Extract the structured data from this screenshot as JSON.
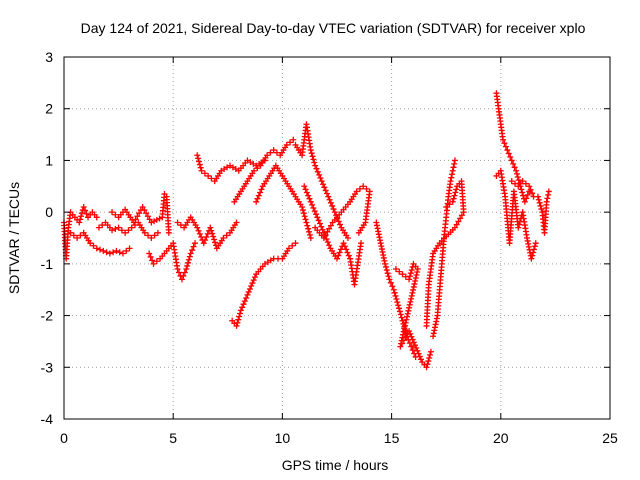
{
  "chart_data": {
    "type": "scatter",
    "title": "Day 124 of 2021, Sidereal Day-to-day VTEC variation (SDTVAR) for receiver xplo",
    "xlabel": "GPS time / hours",
    "ylabel": "SDTVAR / TECUs",
    "xlim": [
      0,
      25
    ],
    "ylim": [
      -4,
      3
    ],
    "xticks": [
      0,
      5,
      10,
      15,
      20,
      25
    ],
    "yticks": [
      -4,
      -3,
      -2,
      -1,
      0,
      1,
      2,
      3
    ],
    "grid": true,
    "marker": "+",
    "series": [
      {
        "name": "SDTVAR",
        "color": "#ff0000",
        "points": [
          [
            0.0,
            -0.2
          ],
          [
            0.1,
            -0.9
          ],
          [
            0.2,
            -0.3
          ],
          [
            0.3,
            0.0
          ],
          [
            0.5,
            -0.1
          ],
          [
            0.7,
            -0.2
          ],
          [
            0.9,
            0.1
          ],
          [
            1.1,
            -0.1
          ],
          [
            1.3,
            0.0
          ],
          [
            1.5,
            -0.1
          ],
          [
            0.3,
            -0.4
          ],
          [
            0.6,
            -0.5
          ],
          [
            0.9,
            -0.4
          ],
          [
            1.2,
            -0.6
          ],
          [
            1.5,
            -0.7
          ],
          [
            1.8,
            -0.75
          ],
          [
            2.1,
            -0.8
          ],
          [
            2.4,
            -0.75
          ],
          [
            2.7,
            -0.8
          ],
          [
            3.0,
            -0.7
          ],
          [
            1.6,
            -0.3
          ],
          [
            1.9,
            -0.2
          ],
          [
            2.2,
            -0.35
          ],
          [
            2.5,
            -0.3
          ],
          [
            2.8,
            -0.4
          ],
          [
            3.1,
            -0.3
          ],
          [
            3.4,
            -0.2
          ],
          [
            3.7,
            -0.4
          ],
          [
            4.0,
            -0.5
          ],
          [
            4.3,
            -0.4
          ],
          [
            2.2,
            0.0
          ],
          [
            2.5,
            -0.1
          ],
          [
            2.8,
            0.05
          ],
          [
            3.2,
            -0.2
          ],
          [
            3.6,
            0.1
          ],
          [
            4.0,
            -0.2
          ],
          [
            4.5,
            -0.1
          ],
          [
            4.6,
            0.35
          ],
          [
            4.7,
            0.3
          ],
          [
            4.8,
            -0.4
          ],
          [
            3.9,
            -0.8
          ],
          [
            4.1,
            -1.0
          ],
          [
            4.4,
            -0.9
          ],
          [
            4.8,
            -0.7
          ],
          [
            5.0,
            -0.6
          ],
          [
            5.2,
            -1.1
          ],
          [
            5.4,
            -1.3
          ],
          [
            5.6,
            -1.1
          ],
          [
            5.8,
            -0.8
          ],
          [
            6.0,
            -0.6
          ],
          [
            5.2,
            -0.2
          ],
          [
            5.5,
            -0.3
          ],
          [
            5.8,
            -0.1
          ],
          [
            6.1,
            -0.3
          ],
          [
            6.4,
            -0.6
          ],
          [
            6.7,
            -0.3
          ],
          [
            7.0,
            -0.7
          ],
          [
            7.3,
            -0.5
          ],
          [
            7.6,
            -0.4
          ],
          [
            7.9,
            -0.2
          ],
          [
            6.1,
            1.1
          ],
          [
            6.3,
            0.8
          ],
          [
            6.6,
            0.7
          ],
          [
            6.9,
            0.6
          ],
          [
            7.2,
            0.8
          ],
          [
            7.6,
            0.9
          ],
          [
            8.0,
            0.8
          ],
          [
            8.4,
            1.0
          ],
          [
            8.8,
            0.9
          ],
          [
            9.2,
            1.0
          ],
          [
            7.7,
            -2.1
          ],
          [
            7.9,
            -2.2
          ],
          [
            8.1,
            -1.9
          ],
          [
            8.4,
            -1.6
          ],
          [
            8.8,
            -1.2
          ],
          [
            9.2,
            -1.0
          ],
          [
            9.6,
            -0.9
          ],
          [
            10.0,
            -0.9
          ],
          [
            10.3,
            -0.7
          ],
          [
            10.6,
            -0.6
          ],
          [
            7.8,
            0.2
          ],
          [
            8.1,
            0.4
          ],
          [
            8.4,
            0.6
          ],
          [
            8.7,
            0.8
          ],
          [
            9.0,
            0.9
          ],
          [
            9.3,
            1.1
          ],
          [
            9.6,
            1.2
          ],
          [
            9.9,
            1.1
          ],
          [
            10.2,
            1.3
          ],
          [
            10.5,
            1.4
          ],
          [
            8.8,
            0.2
          ],
          [
            9.1,
            0.5
          ],
          [
            9.4,
            0.7
          ],
          [
            9.7,
            0.9
          ],
          [
            10.0,
            0.7
          ],
          [
            10.3,
            0.5
          ],
          [
            10.6,
            0.3
          ],
          [
            10.9,
            0.1
          ],
          [
            11.1,
            -0.2
          ],
          [
            11.3,
            -0.5
          ],
          [
            10.6,
            1.3
          ],
          [
            10.9,
            1.1
          ],
          [
            11.1,
            1.7
          ],
          [
            11.3,
            1.2
          ],
          [
            11.5,
            0.9
          ],
          [
            11.8,
            0.6
          ],
          [
            12.1,
            0.3
          ],
          [
            12.4,
            0.0
          ],
          [
            12.7,
            -0.3
          ],
          [
            13.0,
            -0.5
          ],
          [
            11.0,
            0.5
          ],
          [
            11.3,
            0.2
          ],
          [
            11.6,
            -0.1
          ],
          [
            11.9,
            -0.4
          ],
          [
            12.2,
            -0.7
          ],
          [
            12.5,
            -0.9
          ],
          [
            12.8,
            -0.6
          ],
          [
            13.1,
            -0.9
          ],
          [
            13.3,
            -1.4
          ],
          [
            13.6,
            -0.6
          ],
          [
            11.5,
            -0.3
          ],
          [
            11.9,
            -0.5
          ],
          [
            12.3,
            -0.2
          ],
          [
            12.7,
            0.0
          ],
          [
            13.1,
            0.2
          ],
          [
            13.4,
            0.4
          ],
          [
            13.7,
            0.5
          ],
          [
            14.0,
            0.4
          ],
          [
            13.8,
            -0.2
          ],
          [
            13.5,
            -0.4
          ],
          [
            14.3,
            -0.2
          ],
          [
            14.5,
            -0.6
          ],
          [
            14.7,
            -1.0
          ],
          [
            14.9,
            -1.3
          ],
          [
            15.1,
            -1.5
          ],
          [
            15.3,
            -1.8
          ],
          [
            15.5,
            -2.1
          ],
          [
            15.7,
            -2.4
          ],
          [
            15.9,
            -2.6
          ],
          [
            16.1,
            -2.8
          ],
          [
            15.2,
            -1.1
          ],
          [
            15.5,
            -1.2
          ],
          [
            15.8,
            -1.3
          ],
          [
            16.0,
            -1.0
          ],
          [
            16.2,
            -1.1
          ],
          [
            15.4,
            -2.6
          ],
          [
            15.8,
            -2.3
          ],
          [
            16.4,
            -2.9
          ],
          [
            16.6,
            -3.0
          ],
          [
            16.8,
            -2.7
          ],
          [
            16.9,
            -2.4
          ],
          [
            17.1,
            -2.0
          ],
          [
            17.2,
            -1.5
          ],
          [
            17.3,
            -1.0
          ],
          [
            17.4,
            -0.5
          ],
          [
            17.5,
            -0.1
          ],
          [
            17.6,
            0.3
          ],
          [
            17.7,
            0.6
          ],
          [
            17.8,
            0.8
          ],
          [
            17.9,
            1.0
          ],
          [
            17.5,
            0.1
          ],
          [
            17.8,
            0.2
          ],
          [
            18.0,
            0.5
          ],
          [
            18.2,
            0.6
          ],
          [
            18.3,
            0.0
          ],
          [
            17.9,
            -0.3
          ],
          [
            17.2,
            -0.6
          ],
          [
            16.9,
            -0.8
          ],
          [
            16.7,
            -1.4
          ],
          [
            16.6,
            -2.2
          ],
          [
            19.8,
            2.3
          ],
          [
            19.9,
            2.0
          ],
          [
            20.0,
            1.7
          ],
          [
            20.1,
            1.4
          ],
          [
            20.3,
            1.2
          ],
          [
            20.5,
            1.0
          ],
          [
            20.7,
            0.8
          ],
          [
            20.9,
            0.5
          ],
          [
            21.1,
            0.2
          ],
          [
            21.3,
            0.4
          ],
          [
            19.8,
            0.7
          ],
          [
            20.0,
            0.8
          ],
          [
            20.2,
            0.3
          ],
          [
            20.4,
            -0.6
          ],
          [
            20.6,
            0.4
          ],
          [
            20.8,
            -0.3
          ],
          [
            21.0,
            0.0
          ],
          [
            21.2,
            -0.5
          ],
          [
            21.4,
            -0.9
          ],
          [
            21.6,
            -0.6
          ],
          [
            20.5,
            0.6
          ],
          [
            20.8,
            0.5
          ],
          [
            21.0,
            0.6
          ],
          [
            21.3,
            0.5
          ],
          [
            21.5,
            0.3
          ],
          [
            21.7,
            0.3
          ],
          [
            21.9,
            0.0
          ],
          [
            22.0,
            -0.4
          ],
          [
            22.1,
            0.2
          ],
          [
            22.2,
            0.4
          ]
        ]
      }
    ]
  }
}
